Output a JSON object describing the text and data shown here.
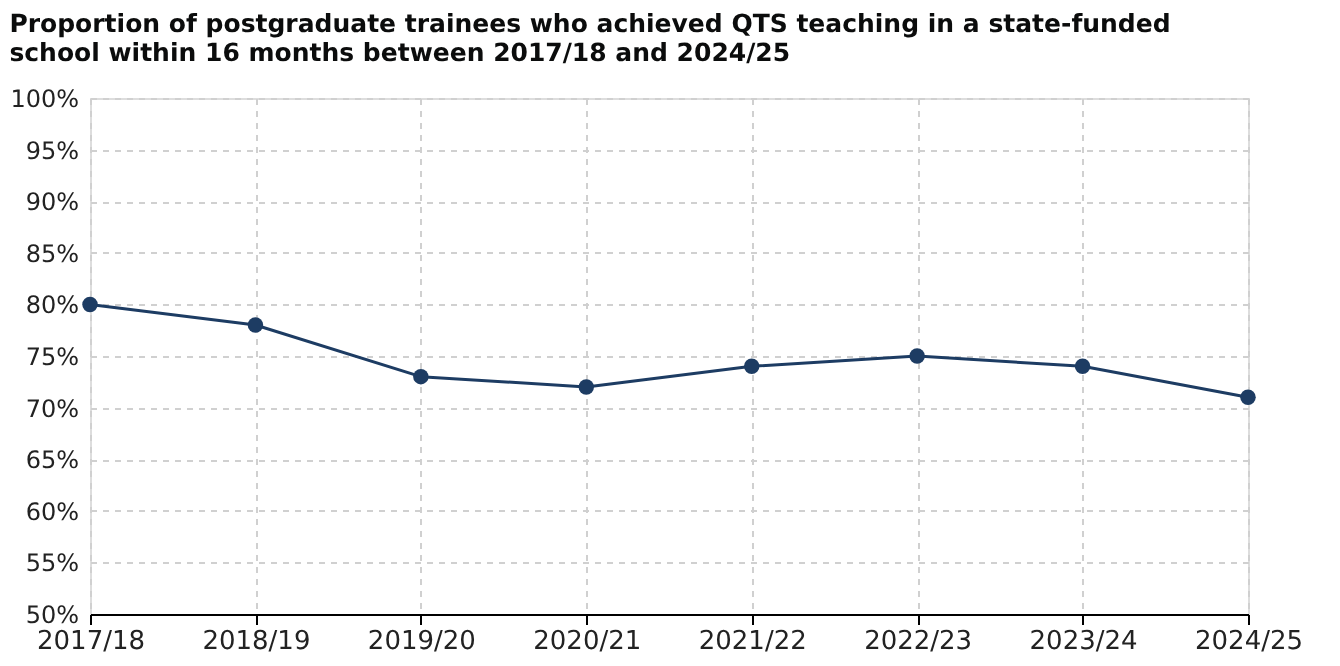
{
  "chart_data": {
    "type": "line",
    "title": "Proportion of postgraduate trainees who achieved QTS teaching in a state-funded school within 16 months between 2017/18 and 2024/25",
    "categories": [
      "2017/18",
      "2018/19",
      "2019/20",
      "2020/21",
      "2021/22",
      "2022/23",
      "2023/24",
      "2024/25"
    ],
    "series": [
      {
        "color": "#1d3c63",
        "values": [
          80,
          78,
          73,
          72,
          74,
          75,
          74,
          71
        ]
      }
    ],
    "ylim": [
      50,
      100
    ],
    "yticks": [
      {
        "value": 50,
        "label": "50%"
      },
      {
        "value": 55,
        "label": "55%"
      },
      {
        "value": 60,
        "label": "60%"
      },
      {
        "value": 65,
        "label": "65%"
      },
      {
        "value": 70,
        "label": "70%"
      },
      {
        "value": 75,
        "label": "75%"
      },
      {
        "value": 80,
        "label": "80%"
      },
      {
        "value": 85,
        "label": "85%"
      },
      {
        "value": 90,
        "label": "90%"
      },
      {
        "value": 95,
        "label": "95%"
      },
      {
        "value": 100,
        "label": "100%"
      }
    ],
    "grid": true,
    "marker": "circle",
    "line_style": "solid",
    "legend": false
  }
}
